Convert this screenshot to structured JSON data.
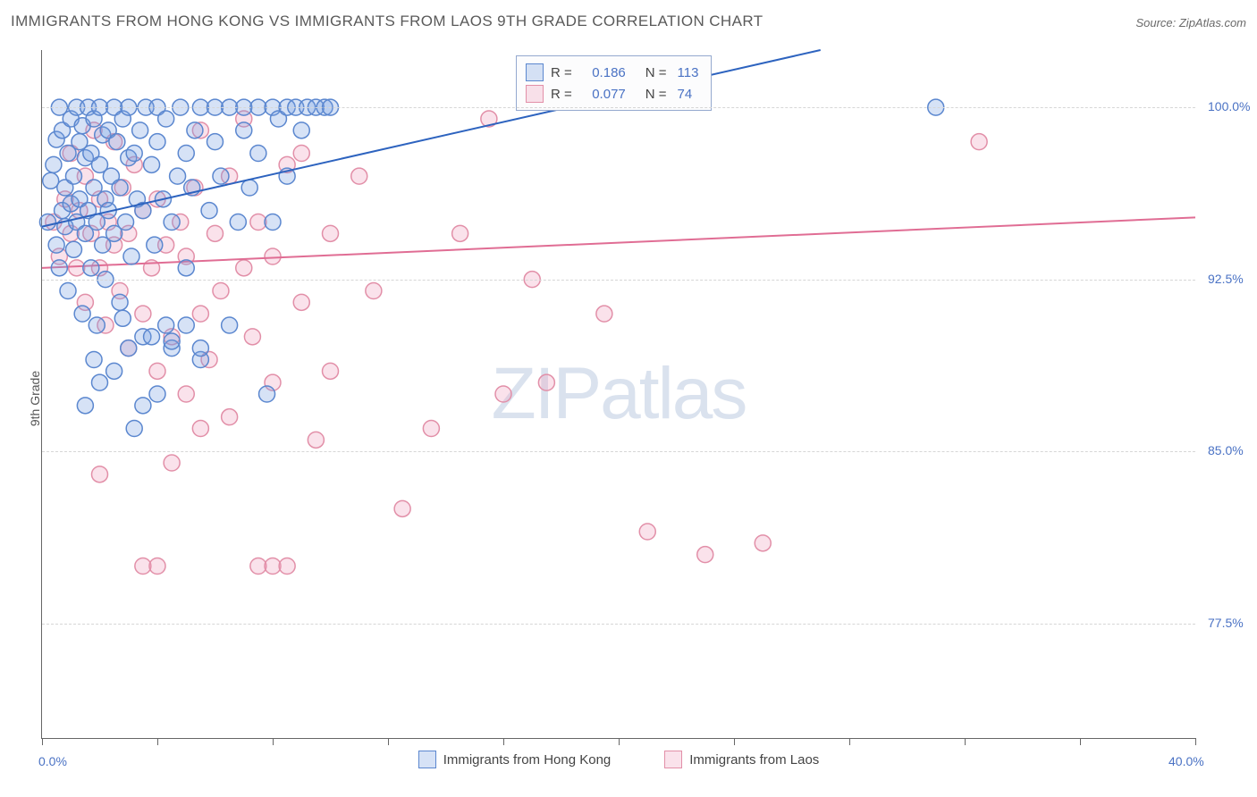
{
  "title": "IMMIGRANTS FROM HONG KONG VS IMMIGRANTS FROM LAOS 9TH GRADE CORRELATION CHART",
  "source": "Source: ZipAtlas.com",
  "watermark_a": "ZIP",
  "watermark_b": "atlas",
  "ylabel": "9th Grade",
  "chart": {
    "type": "scatter",
    "xlim": [
      0,
      40
    ],
    "ylim": [
      72.5,
      102.5
    ],
    "xtick_positions": [
      0,
      4,
      8,
      12,
      16,
      20,
      24,
      28,
      32,
      36,
      40
    ],
    "xtick_labels_shown": {
      "0": "0.0%",
      "40": "40.0%"
    },
    "ytick_positions": [
      77.5,
      85.0,
      92.5,
      100.0
    ],
    "ytick_labels": [
      "77.5%",
      "85.0%",
      "92.5%",
      "100.0%"
    ],
    "background_color": "#ffffff",
    "grid_color": "#d6d6d6",
    "axis_color": "#666666",
    "tick_label_color": "#4a72c4",
    "marker_radius": 9,
    "marker_stroke_width": 1.5,
    "trend_line_width": 2
  },
  "series": {
    "hk": {
      "label": "Immigrants from Hong Kong",
      "fill": "rgba(120,160,224,0.30)",
      "stroke": "#5b87cf",
      "R": "0.186",
      "N": "113",
      "trend": {
        "x1": 0,
        "y1": 94.8,
        "x2": 27,
        "y2": 102.5,
        "color": "#2d63bf"
      },
      "points": [
        [
          0.2,
          95.0
        ],
        [
          0.3,
          96.8
        ],
        [
          0.4,
          97.5
        ],
        [
          0.5,
          94.0
        ],
        [
          0.5,
          98.6
        ],
        [
          0.6,
          100.0
        ],
        [
          0.6,
          93.0
        ],
        [
          0.7,
          95.5
        ],
        [
          0.7,
          99.0
        ],
        [
          0.8,
          96.5
        ],
        [
          0.8,
          94.8
        ],
        [
          0.9,
          98.0
        ],
        [
          0.9,
          92.0
        ],
        [
          1.0,
          95.8
        ],
        [
          1.0,
          99.5
        ],
        [
          1.1,
          97.0
        ],
        [
          1.1,
          93.8
        ],
        [
          1.2,
          100.0
        ],
        [
          1.2,
          95.0
        ],
        [
          1.3,
          98.5
        ],
        [
          1.3,
          96.0
        ],
        [
          1.4,
          91.0
        ],
        [
          1.4,
          99.2
        ],
        [
          1.5,
          94.5
        ],
        [
          1.5,
          97.8
        ],
        [
          1.6,
          100.0
        ],
        [
          1.6,
          95.5
        ],
        [
          1.7,
          98.0
        ],
        [
          1.7,
          93.0
        ],
        [
          1.8,
          96.5
        ],
        [
          1.8,
          99.5
        ],
        [
          1.9,
          90.5
        ],
        [
          1.9,
          95.0
        ],
        [
          2.0,
          97.5
        ],
        [
          2.0,
          100.0
        ],
        [
          2.1,
          94.0
        ],
        [
          2.1,
          98.8
        ],
        [
          2.2,
          96.0
        ],
        [
          2.2,
          92.5
        ],
        [
          2.3,
          99.0
        ],
        [
          2.3,
          95.5
        ],
        [
          2.4,
          97.0
        ],
        [
          2.5,
          100.0
        ],
        [
          2.5,
          94.5
        ],
        [
          2.6,
          98.5
        ],
        [
          2.7,
          96.5
        ],
        [
          2.7,
          91.5
        ],
        [
          2.8,
          99.5
        ],
        [
          2.9,
          95.0
        ],
        [
          3.0,
          97.8
        ],
        [
          3.0,
          100.0
        ],
        [
          3.1,
          93.5
        ],
        [
          3.2,
          98.0
        ],
        [
          3.3,
          96.0
        ],
        [
          3.4,
          99.0
        ],
        [
          3.5,
          90.0
        ],
        [
          3.5,
          95.5
        ],
        [
          3.6,
          100.0
        ],
        [
          3.8,
          97.5
        ],
        [
          3.9,
          94.0
        ],
        [
          4.0,
          98.5
        ],
        [
          4.0,
          100.0
        ],
        [
          4.2,
          96.0
        ],
        [
          4.3,
          99.5
        ],
        [
          4.5,
          89.5
        ],
        [
          4.5,
          95.0
        ],
        [
          4.7,
          97.0
        ],
        [
          4.8,
          100.0
        ],
        [
          5.0,
          98.0
        ],
        [
          5.0,
          93.0
        ],
        [
          5.2,
          96.5
        ],
        [
          5.3,
          99.0
        ],
        [
          5.5,
          100.0
        ],
        [
          5.5,
          89.0
        ],
        [
          5.8,
          95.5
        ],
        [
          6.0,
          98.5
        ],
        [
          6.0,
          100.0
        ],
        [
          6.2,
          97.0
        ],
        [
          6.5,
          100.0
        ],
        [
          6.5,
          90.5
        ],
        [
          6.8,
          95.0
        ],
        [
          7.0,
          99.0
        ],
        [
          7.0,
          100.0
        ],
        [
          7.2,
          96.5
        ],
        [
          7.5,
          100.0
        ],
        [
          7.5,
          98.0
        ],
        [
          7.8,
          87.5
        ],
        [
          8.0,
          100.0
        ],
        [
          8.0,
          95.0
        ],
        [
          8.2,
          99.5
        ],
        [
          8.5,
          100.0
        ],
        [
          8.5,
          97.0
        ],
        [
          8.8,
          100.0
        ],
        [
          9.0,
          99.0
        ],
        [
          9.2,
          100.0
        ],
        [
          9.5,
          100.0
        ],
        [
          9.8,
          100.0
        ],
        [
          10.0,
          100.0
        ],
        [
          3.0,
          89.5
        ],
        [
          3.5,
          87.0
        ],
        [
          4.0,
          87.5
        ],
        [
          4.5,
          89.8
        ],
        [
          2.5,
          88.5
        ],
        [
          2.0,
          88.0
        ],
        [
          1.5,
          87.0
        ],
        [
          5.5,
          89.5
        ],
        [
          4.3,
          90.5
        ],
        [
          3.8,
          90.0
        ],
        [
          2.8,
          90.8
        ],
        [
          1.8,
          89.0
        ],
        [
          5.0,
          90.5
        ],
        [
          3.2,
          86.0
        ],
        [
          31.0,
          100.0
        ]
      ]
    },
    "laos": {
      "label": "Immigrants from Laos",
      "fill": "rgba(240,160,190,0.30)",
      "stroke": "#e28fa8",
      "R": "0.077",
      "N": "74",
      "trend": {
        "x1": 0,
        "y1": 93.0,
        "x2": 40,
        "y2": 95.2,
        "color": "#e06d94"
      },
      "points": [
        [
          0.4,
          95.0
        ],
        [
          0.6,
          93.5
        ],
        [
          0.8,
          96.0
        ],
        [
          1.0,
          94.5
        ],
        [
          1.0,
          98.0
        ],
        [
          1.2,
          93.0
        ],
        [
          1.3,
          95.5
        ],
        [
          1.5,
          91.5
        ],
        [
          1.5,
          97.0
        ],
        [
          1.7,
          94.5
        ],
        [
          1.8,
          99.0
        ],
        [
          2.0,
          93.0
        ],
        [
          2.0,
          96.0
        ],
        [
          2.2,
          90.5
        ],
        [
          2.3,
          95.0
        ],
        [
          2.5,
          94.0
        ],
        [
          2.5,
          98.5
        ],
        [
          2.7,
          92.0
        ],
        [
          2.8,
          96.5
        ],
        [
          3.0,
          89.5
        ],
        [
          3.0,
          94.5
        ],
        [
          3.2,
          97.5
        ],
        [
          3.5,
          91.0
        ],
        [
          3.5,
          95.5
        ],
        [
          3.8,
          93.0
        ],
        [
          4.0,
          88.5
        ],
        [
          4.0,
          96.0
        ],
        [
          4.3,
          94.0
        ],
        [
          4.5,
          90.0
        ],
        [
          4.8,
          95.0
        ],
        [
          5.0,
          87.5
        ],
        [
          5.0,
          93.5
        ],
        [
          5.3,
          96.5
        ],
        [
          5.5,
          91.0
        ],
        [
          5.5,
          99.0
        ],
        [
          5.8,
          89.0
        ],
        [
          6.0,
          94.5
        ],
        [
          6.2,
          92.0
        ],
        [
          6.5,
          97.0
        ],
        [
          6.5,
          86.5
        ],
        [
          7.0,
          93.0
        ],
        [
          7.0,
          99.5
        ],
        [
          7.3,
          90.0
        ],
        [
          7.5,
          95.0
        ],
        [
          8.0,
          88.0
        ],
        [
          8.0,
          93.5
        ],
        [
          8.5,
          97.5
        ],
        [
          2.0,
          84.0
        ],
        [
          3.5,
          80.0
        ],
        [
          4.0,
          80.0
        ],
        [
          4.5,
          84.5
        ],
        [
          5.5,
          86.0
        ],
        [
          7.5,
          80.0
        ],
        [
          8.0,
          80.0
        ],
        [
          9.0,
          98.0
        ],
        [
          9.0,
          91.5
        ],
        [
          9.5,
          85.5
        ],
        [
          10.0,
          94.5
        ],
        [
          10.0,
          88.5
        ],
        [
          11.0,
          97.0
        ],
        [
          11.5,
          92.0
        ],
        [
          12.5,
          82.5
        ],
        [
          13.5,
          86.0
        ],
        [
          14.5,
          94.5
        ],
        [
          15.5,
          99.5
        ],
        [
          16.0,
          87.5
        ],
        [
          17.0,
          92.5
        ],
        [
          17.5,
          88.0
        ],
        [
          19.5,
          91.0
        ],
        [
          21.0,
          81.5
        ],
        [
          23.0,
          80.5
        ],
        [
          25.0,
          81.0
        ],
        [
          32.5,
          98.5
        ],
        [
          8.5,
          80.0
        ]
      ]
    }
  },
  "legend_box": {
    "r_label": "R = ",
    "n_label": "N = "
  }
}
